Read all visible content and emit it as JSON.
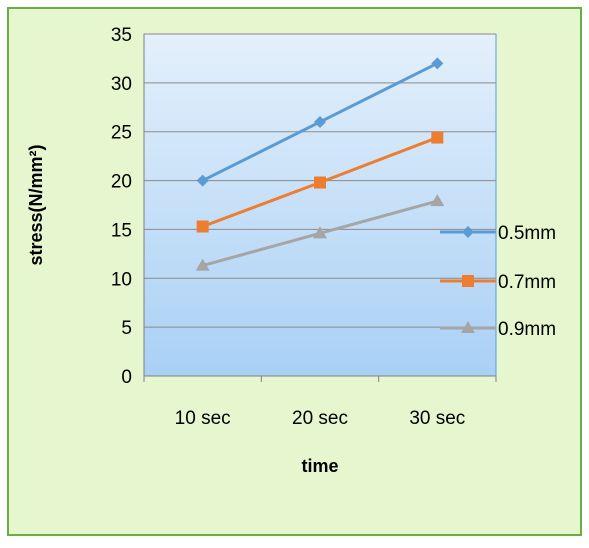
{
  "chart_data": {
    "type": "line",
    "title": "",
    "xlabel": "time",
    "ylabel": "stress(N/mm²)",
    "categories": [
      "10 sec",
      "20 sec",
      "30 sec"
    ],
    "ylim": [
      0,
      35
    ],
    "yticks": [
      "0",
      "5",
      "10",
      "15",
      "20",
      "25",
      "30",
      "35"
    ],
    "ytick_values": [
      0,
      5,
      10,
      15,
      20,
      25,
      30,
      35
    ],
    "grid": true,
    "legend_position": "right",
    "series": [
      {
        "name": "0.5mm",
        "values": [
          20,
          26,
          32
        ],
        "color": "#5B9BD5",
        "marker": "diamond"
      },
      {
        "name": "0.7mm",
        "values": [
          15.3,
          19.8,
          24.4
        ],
        "color": "#ED7D31",
        "marker": "square"
      },
      {
        "name": "0.9mm",
        "values": [
          11.3,
          14.6,
          17.9
        ],
        "color": "#A5A5A5",
        "marker": "triangle"
      }
    ],
    "colors": {
      "frame_background": "#E6F7D0",
      "frame_border": "#6AAE3E",
      "plot_gradient_top": "#E4F0FB",
      "plot_gradient_bottom": "#A9D0F5",
      "plot_border": "#5B9BD5",
      "gridline": "#8A8A8A"
    }
  }
}
